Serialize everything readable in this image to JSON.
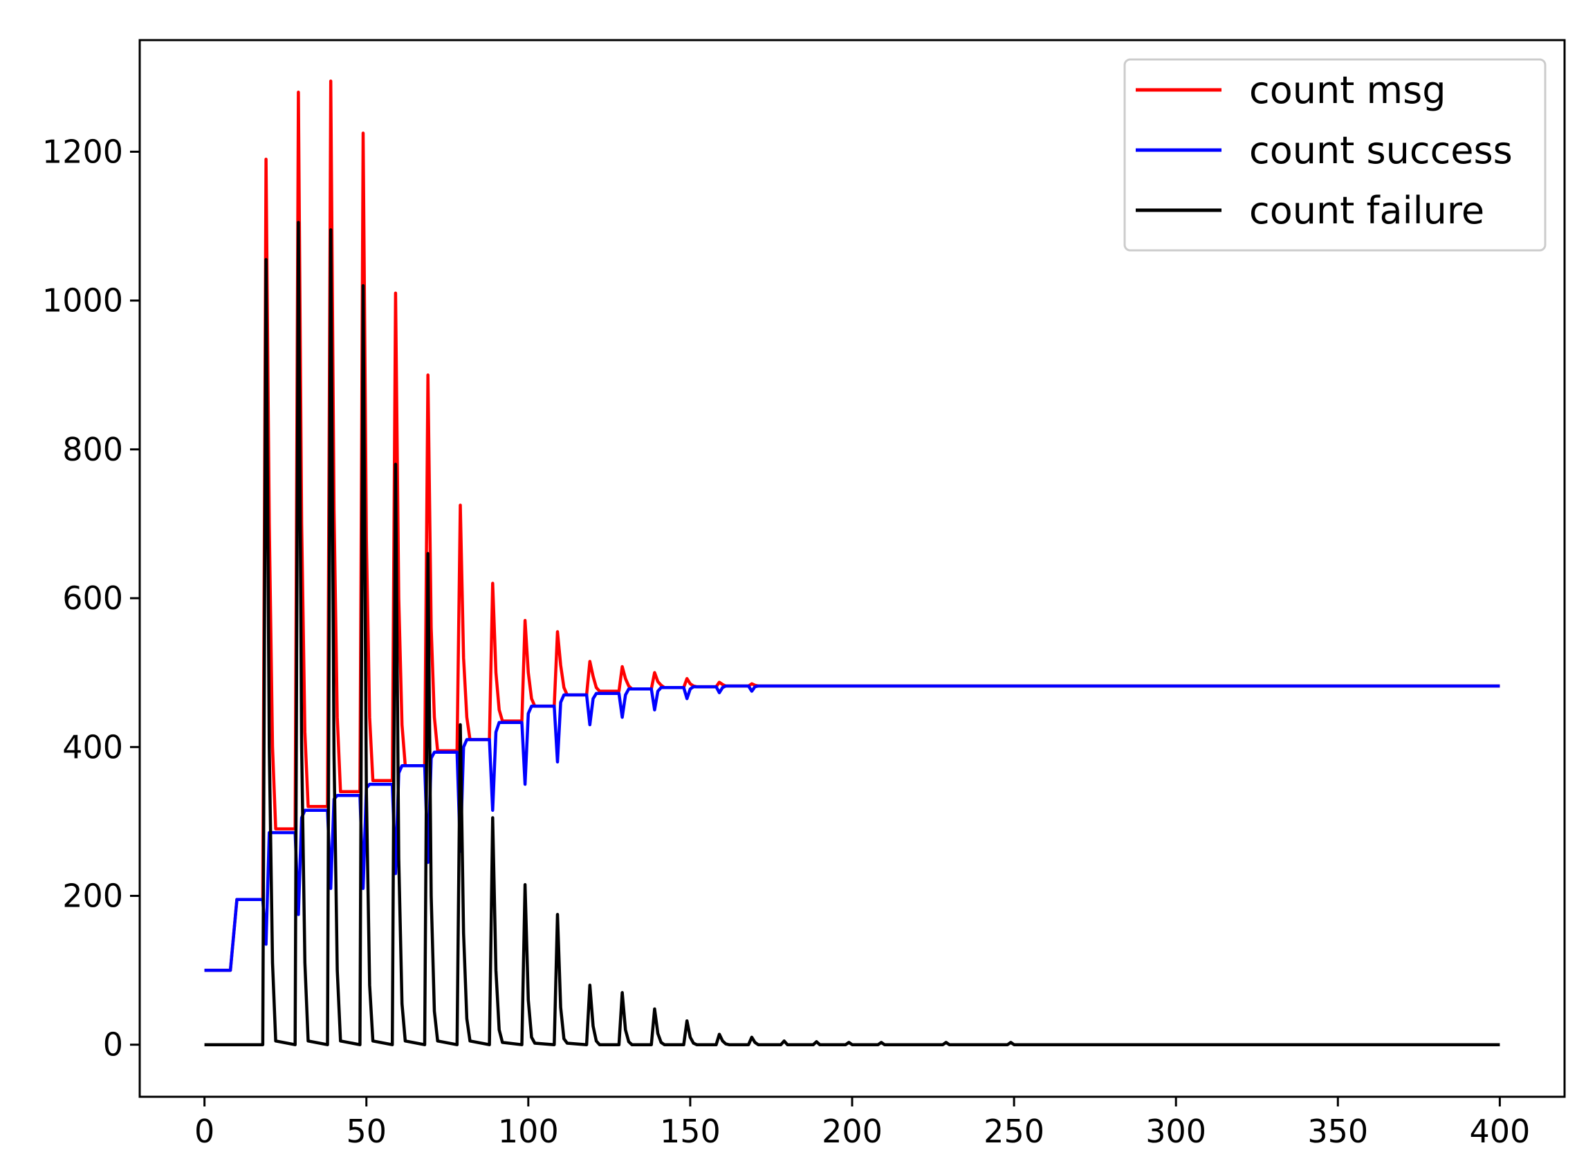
{
  "chart_data": {
    "type": "line",
    "title": "",
    "xlabel": "",
    "ylabel": "",
    "xlim": [
      -20,
      420
    ],
    "ylim": [
      -70,
      1350
    ],
    "xticks": [
      0,
      50,
      100,
      150,
      200,
      250,
      300,
      350,
      400
    ],
    "yticks": [
      0,
      200,
      400,
      600,
      800,
      1000,
      1200
    ],
    "grid": false,
    "legend_position": "top-right",
    "series": [
      {
        "name": "count msg",
        "color": "#ff0000",
        "x": [
          0,
          8,
          10,
          18,
          19,
          20,
          21,
          22,
          28,
          29,
          30,
          31,
          32,
          38,
          39,
          40,
          41,
          42,
          48,
          49,
          50,
          51,
          52,
          58,
          59,
          60,
          61,
          62,
          68,
          69,
          70,
          71,
          72,
          78,
          79,
          80,
          81,
          82,
          88,
          89,
          90,
          91,
          92,
          98,
          99,
          100,
          101,
          102,
          108,
          109,
          110,
          111,
          112,
          118,
          119,
          120,
          121,
          122,
          128,
          129,
          130,
          131,
          132,
          138,
          139,
          140,
          141,
          142,
          148,
          149,
          150,
          151,
          152,
          158,
          159,
          160,
          161,
          162,
          168,
          169,
          170,
          171,
          172,
          400
        ],
        "y": [
          100,
          100,
          195,
          195,
          1190,
          700,
          400,
          290,
          290,
          1280,
          700,
          420,
          320,
          320,
          1295,
          720,
          440,
          340,
          340,
          1225,
          680,
          440,
          355,
          355,
          1010,
          600,
          430,
          375,
          375,
          900,
          560,
          440,
          395,
          395,
          725,
          520,
          440,
          410,
          410,
          620,
          500,
          450,
          435,
          435,
          570,
          500,
          465,
          455,
          455,
          555,
          510,
          480,
          470,
          470,
          515,
          495,
          480,
          475,
          475,
          508,
          492,
          482,
          478,
          478,
          500,
          488,
          483,
          480,
          480,
          492,
          485,
          482,
          481,
          481,
          487,
          484,
          482,
          482,
          482,
          485,
          483,
          482,
          482,
          482
        ]
      },
      {
        "name": "count success",
        "color": "#0000ff",
        "x": [
          0,
          8,
          10,
          18,
          19,
          20,
          21,
          22,
          28,
          29,
          30,
          31,
          32,
          38,
          39,
          40,
          41,
          42,
          48,
          49,
          50,
          51,
          52,
          58,
          59,
          60,
          61,
          62,
          68,
          69,
          70,
          71,
          72,
          78,
          79,
          80,
          81,
          82,
          88,
          89,
          90,
          91,
          92,
          98,
          99,
          100,
          101,
          102,
          108,
          109,
          110,
          111,
          112,
          118,
          119,
          120,
          121,
          122,
          128,
          129,
          130,
          131,
          132,
          138,
          139,
          140,
          141,
          142,
          148,
          149,
          150,
          151,
          152,
          158,
          159,
          160,
          161,
          162,
          168,
          169,
          170,
          171,
          172,
          400
        ],
        "y": [
          100,
          100,
          195,
          195,
          135,
          285,
          285,
          285,
          285,
          175,
          305,
          315,
          315,
          315,
          210,
          330,
          335,
          335,
          335,
          210,
          345,
          350,
          350,
          350,
          230,
          365,
          375,
          375,
          375,
          245,
          385,
          393,
          393,
          393,
          260,
          400,
          410,
          410,
          410,
          315,
          420,
          433,
          433,
          433,
          350,
          445,
          455,
          455,
          455,
          380,
          460,
          470,
          470,
          470,
          430,
          465,
          472,
          472,
          472,
          440,
          470,
          478,
          478,
          478,
          450,
          475,
          480,
          480,
          480,
          465,
          478,
          481,
          481,
          481,
          473,
          480,
          482,
          482,
          482,
          475,
          481,
          482,
          482,
          482
        ]
      },
      {
        "name": "count failure",
        "color": "#000000",
        "x": [
          0,
          18,
          19,
          20,
          21,
          22,
          28,
          29,
          30,
          31,
          32,
          38,
          39,
          40,
          41,
          42,
          48,
          49,
          50,
          51,
          52,
          58,
          59,
          60,
          61,
          62,
          68,
          69,
          70,
          71,
          72,
          78,
          79,
          80,
          81,
          82,
          88,
          89,
          90,
          91,
          92,
          98,
          99,
          100,
          101,
          102,
          108,
          109,
          110,
          111,
          112,
          118,
          119,
          120,
          121,
          122,
          128,
          129,
          130,
          131,
          132,
          138,
          139,
          140,
          141,
          142,
          148,
          149,
          150,
          151,
          152,
          158,
          159,
          160,
          161,
          162,
          168,
          169,
          170,
          171,
          172,
          178,
          179,
          180,
          188,
          189,
          190,
          198,
          199,
          200,
          208,
          209,
          210,
          228,
          229,
          230,
          248,
          249,
          250,
          400
        ],
        "y": [
          0,
          0,
          1055,
          400,
          110,
          5,
          0,
          1105,
          400,
          110,
          5,
          0,
          1095,
          390,
          100,
          5,
          0,
          1020,
          340,
          80,
          5,
          0,
          780,
          250,
          55,
          5,
          0,
          660,
          200,
          45,
          5,
          0,
          430,
          150,
          35,
          5,
          0,
          305,
          100,
          20,
          3,
          0,
          215,
          60,
          10,
          2,
          0,
          175,
          50,
          8,
          2,
          0,
          80,
          25,
          5,
          0,
          0,
          70,
          20,
          4,
          0,
          0,
          48,
          15,
          3,
          0,
          0,
          32,
          10,
          2,
          0,
          0,
          14,
          5,
          1,
          0,
          0,
          10,
          3,
          0,
          0,
          0,
          5,
          0,
          0,
          4,
          0,
          0,
          3,
          0,
          0,
          3,
          0,
          0,
          3,
          0,
          0,
          3,
          0,
          0
        ]
      }
    ]
  }
}
